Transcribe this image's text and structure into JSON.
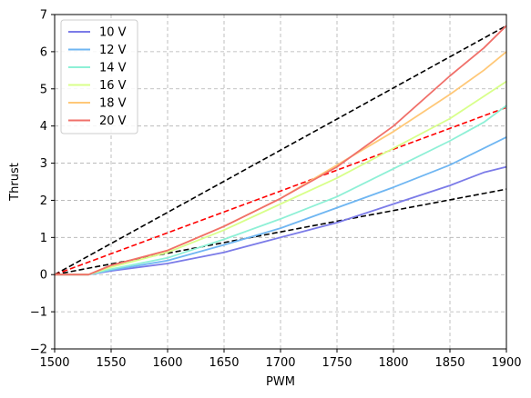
{
  "chart_data": {
    "type": "line",
    "title": "",
    "xlabel": "PWM",
    "ylabel": "Thrust",
    "xlim": [
      1500,
      1900
    ],
    "ylim": [
      -2,
      7
    ],
    "xticks": [
      1500,
      1550,
      1600,
      1650,
      1700,
      1750,
      1800,
      1850,
      1900
    ],
    "yticks": [
      -2,
      -1,
      0,
      1,
      2,
      3,
      4,
      5,
      6,
      7
    ],
    "grid": true,
    "legend": "top-left",
    "series": [
      {
        "name": "10 V",
        "color": "#7b7be8",
        "x": [
          1500,
          1530,
          1550,
          1600,
          1650,
          1700,
          1750,
          1800,
          1850,
          1880,
          1900
        ],
        "y": [
          0,
          0,
          0.1,
          0.3,
          0.6,
          1.0,
          1.4,
          1.9,
          2.4,
          2.75,
          2.9
        ]
      },
      {
        "name": "12 V",
        "color": "#6fb6f2",
        "x": [
          1500,
          1530,
          1550,
          1600,
          1650,
          1700,
          1750,
          1800,
          1850,
          1880,
          1900
        ],
        "y": [
          0,
          0,
          0.12,
          0.38,
          0.8,
          1.25,
          1.8,
          2.35,
          2.95,
          3.4,
          3.7
        ]
      },
      {
        "name": "14 V",
        "color": "#8ef0d6",
        "x": [
          1500,
          1530,
          1550,
          1600,
          1650,
          1700,
          1750,
          1800,
          1850,
          1880,
          1900
        ],
        "y": [
          0,
          0,
          0.15,
          0.45,
          0.95,
          1.5,
          2.1,
          2.85,
          3.6,
          4.1,
          4.55
        ]
      },
      {
        "name": "16 V",
        "color": "#d8ff8a",
        "x": [
          1500,
          1530,
          1550,
          1600,
          1650,
          1700,
          1750,
          1800,
          1850,
          1880,
          1900
        ],
        "y": [
          0,
          0,
          0.2,
          0.6,
          1.2,
          1.9,
          2.6,
          3.4,
          4.2,
          4.8,
          5.2
        ]
      },
      {
        "name": "18 V",
        "color": "#ffc878",
        "x": [
          1500,
          1530,
          1550,
          1600,
          1650,
          1700,
          1750,
          1800,
          1850,
          1880,
          1900
        ],
        "y": [
          0,
          0,
          0.25,
          0.65,
          1.3,
          2.05,
          2.95,
          3.85,
          4.85,
          5.5,
          6.0
        ]
      },
      {
        "name": "20 V",
        "color": "#f0706a",
        "x": [
          1500,
          1530,
          1550,
          1600,
          1650,
          1700,
          1750,
          1800,
          1850,
          1880,
          1900
        ],
        "y": [
          0,
          0,
          0.25,
          0.65,
          1.3,
          2.05,
          2.9,
          4.0,
          5.35,
          6.1,
          6.7
        ]
      }
    ],
    "reference_lines": [
      {
        "color": "#000000",
        "style": "dashed",
        "x": [
          1500,
          1900
        ],
        "y": [
          0,
          6.7
        ]
      },
      {
        "color": "#ff0000",
        "style": "dashed",
        "x": [
          1500,
          1900
        ],
        "y": [
          0,
          4.5
        ]
      },
      {
        "color": "#000000",
        "style": "dashed",
        "x": [
          1500,
          1900
        ],
        "y": [
          0,
          2.3
        ]
      }
    ]
  }
}
